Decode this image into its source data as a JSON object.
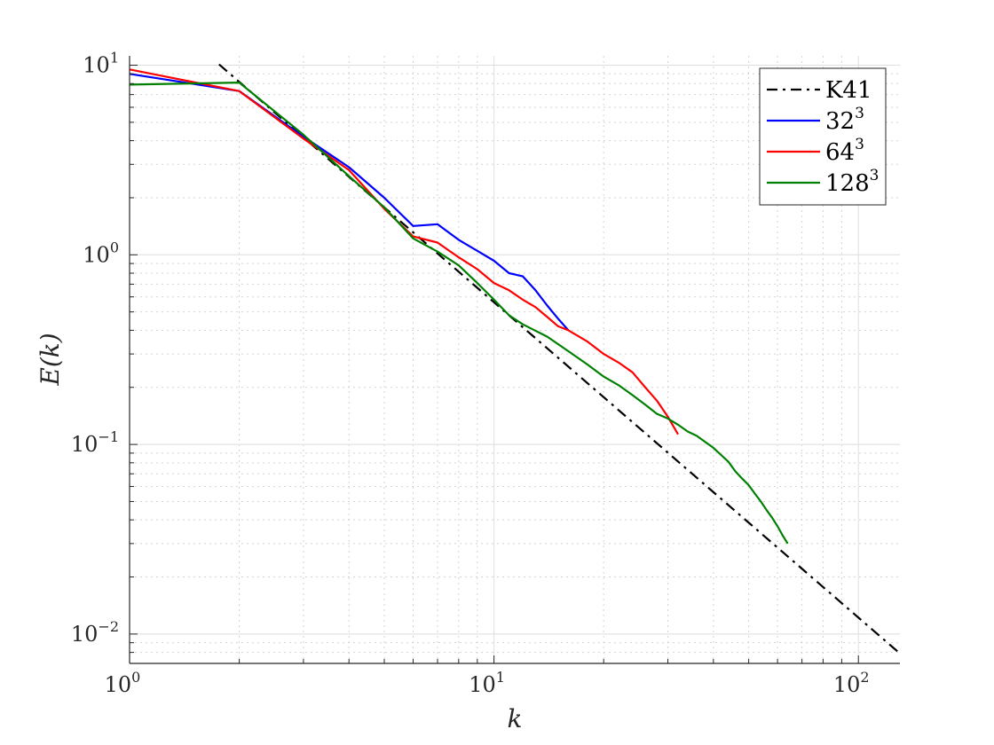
{
  "chart_data": {
    "type": "line",
    "xlabel": "k",
    "ylabel": "E(k)",
    "xscale": "log",
    "yscale": "log",
    "xlim": [
      1,
      130
    ],
    "ylim": [
      0.007,
      11.2
    ],
    "grid": "major and minor",
    "legend_position": "top-right",
    "x_ticks": [
      {
        "base": "10",
        "exp": "0",
        "value": 1
      },
      {
        "base": "10",
        "exp": "1",
        "value": 10
      },
      {
        "base": "10",
        "exp": "2",
        "value": 100
      }
    ],
    "y_ticks": [
      {
        "base": "10",
        "exp": "1",
        "value": 10
      },
      {
        "base": "10",
        "exp": "0",
        "value": 1
      },
      {
        "base": "10",
        "exp": "−1",
        "value": 0.1
      },
      {
        "base": "10",
        "exp": "−2",
        "value": 0.01
      }
    ],
    "series": [
      {
        "name": "K41",
        "name_base": "K41",
        "name_exp": "",
        "color": "#000000",
        "style": "dash-dot",
        "x": [
          1.76,
          128
        ],
        "y": [
          10.1,
          0.0081
        ]
      },
      {
        "name": "32^3",
        "name_base": "32",
        "name_exp": "3",
        "color": "#0000ff",
        "style": "solid",
        "x": [
          1,
          2,
          3,
          4,
          5,
          6,
          7,
          8,
          9,
          10,
          11,
          12,
          13,
          14,
          15,
          16
        ],
        "y": [
          9.0,
          7.3,
          4.2,
          2.9,
          2.0,
          1.42,
          1.45,
          1.2,
          1.05,
          0.93,
          0.8,
          0.77,
          0.65,
          0.54,
          0.46,
          0.4
        ]
      },
      {
        "name": "64^3",
        "name_base": "64",
        "name_exp": "3",
        "color": "#ff0000",
        "style": "solid",
        "x": [
          1,
          2,
          3,
          4,
          5,
          6,
          7,
          8,
          9,
          10,
          11,
          12,
          13,
          14,
          15,
          16,
          18,
          20,
          22,
          24,
          26,
          28,
          30,
          32
        ],
        "y": [
          9.5,
          7.3,
          4.1,
          2.8,
          1.75,
          1.25,
          1.16,
          0.97,
          0.84,
          0.71,
          0.65,
          0.58,
          0.53,
          0.47,
          0.42,
          0.4,
          0.35,
          0.3,
          0.27,
          0.24,
          0.2,
          0.17,
          0.14,
          0.113
        ]
      },
      {
        "name": "128^3",
        "name_base": "128",
        "name_exp": "3",
        "color": "#008000",
        "style": "solid",
        "x": [
          1,
          2,
          3,
          4,
          5,
          6,
          7,
          8,
          9,
          10,
          11,
          12,
          14,
          16,
          18,
          20,
          22,
          24,
          26,
          28,
          30,
          32,
          34,
          36,
          38,
          40,
          42,
          44,
          46,
          48,
          50,
          52,
          54,
          56,
          58,
          60,
          62,
          64
        ],
        "y": [
          7.9,
          8.1,
          4.3,
          2.6,
          1.78,
          1.22,
          1.04,
          0.88,
          0.71,
          0.58,
          0.48,
          0.43,
          0.37,
          0.31,
          0.265,
          0.228,
          0.205,
          0.182,
          0.162,
          0.145,
          0.137,
          0.127,
          0.117,
          0.111,
          0.103,
          0.096,
          0.088,
          0.081,
          0.072,
          0.066,
          0.061,
          0.055,
          0.05,
          0.045,
          0.041,
          0.037,
          0.033,
          0.03
        ]
      }
    ]
  }
}
